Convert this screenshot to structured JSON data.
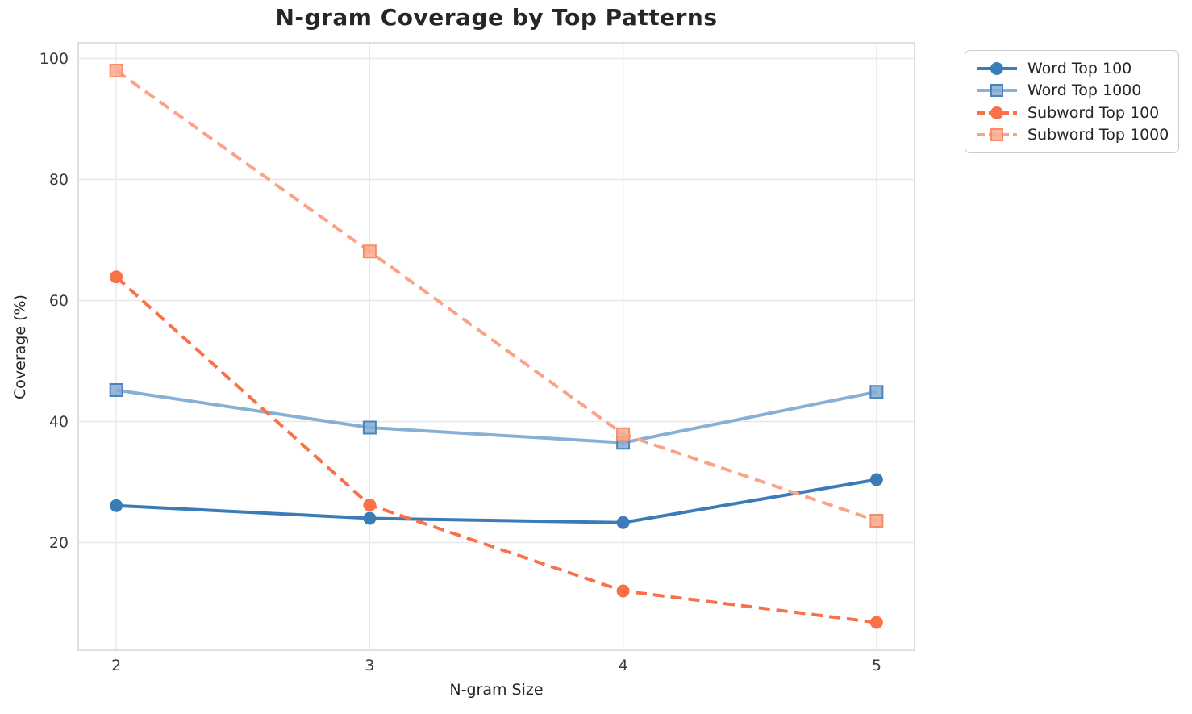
{
  "chart_data": {
    "type": "line",
    "title": "N-gram Coverage by Top Patterns",
    "xlabel": "N-gram Size",
    "ylabel": "Coverage (%)",
    "x": [
      2,
      3,
      4,
      5
    ],
    "xticklabels": [
      "2",
      "3",
      "4",
      "5"
    ],
    "yticks": [
      20,
      40,
      60,
      80,
      100
    ],
    "yticklabels": [
      "20",
      "40",
      "60",
      "80",
      "100"
    ],
    "xlim": [
      1.85,
      5.15
    ],
    "ylim": [
      2.2,
      102.6
    ],
    "grid": true,
    "legend_position": "upper-right-outside",
    "series": [
      {
        "name": "Word Top 100",
        "values": [
          26.1,
          24.0,
          23.3,
          30.4
        ],
        "color": "#3A7CB8",
        "marker": "circle",
        "marker_fill": "#3A7CB8",
        "marker_edge": "#3A7CB8",
        "line_style": "solid"
      },
      {
        "name": "Word Top 1000",
        "values": [
          45.2,
          39.0,
          36.5,
          44.9
        ],
        "color": "#88AFD4",
        "marker": "square",
        "marker_fill": "#84ACD3",
        "marker_edge": "#4E83B9",
        "line_style": "solid"
      },
      {
        "name": "Subword Top 100",
        "values": [
          63.9,
          26.2,
          12.0,
          6.8
        ],
        "color": "#F9714B",
        "marker": "circle",
        "marker_fill": "#F9714B",
        "marker_edge": "#F9714B",
        "line_style": "dashed"
      },
      {
        "name": "Subword Top 1000",
        "values": [
          98.0,
          68.1,
          37.9,
          23.6
        ],
        "color": "#FBA287",
        "marker": "square",
        "marker_fill": "#FBA98E",
        "marker_edge": "#F98D67",
        "line_style": "dashed"
      }
    ],
    "style": {
      "background": "#ffffff",
      "grid_color": "#e8e8e8",
      "spine_color": "#d9d9d9",
      "title_color": "#262626",
      "tick_color": "#3a3a3a"
    }
  }
}
